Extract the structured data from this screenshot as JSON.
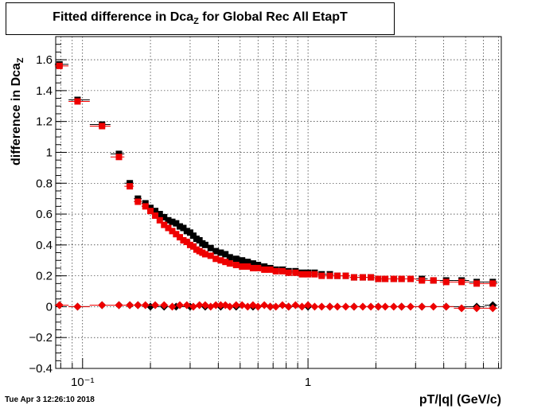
{
  "title": {
    "main": "Fitted difference in Dca",
    "sub": "Z",
    "rest": " for Global Rec All EtapT"
  },
  "timestamp": "Tue Apr  3 12:26:10 2018",
  "chart_data": {
    "type": "scatter",
    "xlabel": "pT/|q| (GeV/c)",
    "ylabel_main": "difference in Dca",
    "ylabel_sub": "Z",
    "x_scale": "log",
    "xlim": [
      0.076,
      7.2
    ],
    "ylim": [
      -0.4,
      1.75
    ],
    "grid": true,
    "y_ticks": [
      -0.4,
      -0.2,
      0,
      0.2,
      0.4,
      0.6,
      0.8,
      1,
      1.2,
      1.4,
      1.6
    ],
    "y_tick_labels": [
      "−0.4",
      "−0.2",
      "0",
      "0.2",
      "0.4",
      "0.6",
      "0.8",
      "1",
      "1.2",
      "1.4",
      "1.6"
    ],
    "x_tick_labels": [
      {
        "value": 0.1,
        "label": "10⁻¹"
      },
      {
        "value": 1,
        "label": "1"
      }
    ],
    "colors": {
      "black": "#000000",
      "red": "#ee0000"
    },
    "series": [
      {
        "marker": "square",
        "color": "black",
        "x": [
          0.079,
          0.095,
          0.122,
          0.145,
          0.162,
          0.176,
          0.19,
          0.2,
          0.21,
          0.22,
          0.23,
          0.24,
          0.25,
          0.26,
          0.27,
          0.28,
          0.29,
          0.3,
          0.31,
          0.32,
          0.33,
          0.34,
          0.35,
          0.37,
          0.39,
          0.41,
          0.43,
          0.45,
          0.48,
          0.51,
          0.54,
          0.57,
          0.6,
          0.64,
          0.68,
          0.72,
          0.77,
          0.82,
          0.88,
          0.94,
          1.0,
          1.07,
          1.15,
          1.25,
          1.35,
          1.47,
          1.6,
          1.75,
          1.9,
          2.05,
          2.2,
          2.4,
          2.6,
          2.85,
          3.2,
          3.6,
          4.1,
          4.8,
          5.6,
          6.6
        ],
        "y": [
          1.57,
          1.34,
          1.18,
          0.99,
          0.8,
          0.7,
          0.67,
          0.64,
          0.62,
          0.6,
          0.58,
          0.56,
          0.55,
          0.54,
          0.52,
          0.51,
          0.49,
          0.48,
          0.46,
          0.44,
          0.43,
          0.41,
          0.4,
          0.38,
          0.36,
          0.35,
          0.34,
          0.32,
          0.31,
          0.3,
          0.29,
          0.28,
          0.27,
          0.26,
          0.25,
          0.24,
          0.24,
          0.23,
          0.23,
          0.22,
          0.22,
          0.22,
          0.21,
          0.21,
          0.2,
          0.2,
          0.19,
          0.19,
          0.19,
          0.18,
          0.18,
          0.18,
          0.18,
          0.18,
          0.18,
          0.17,
          0.17,
          0.17,
          0.16,
          0.16
        ]
      },
      {
        "marker": "square",
        "color": "red",
        "x": [
          0.079,
          0.095,
          0.122,
          0.145,
          0.162,
          0.176,
          0.19,
          0.2,
          0.21,
          0.22,
          0.23,
          0.24,
          0.25,
          0.26,
          0.27,
          0.28,
          0.29,
          0.3,
          0.31,
          0.32,
          0.33,
          0.34,
          0.35,
          0.37,
          0.39,
          0.41,
          0.43,
          0.45,
          0.48,
          0.51,
          0.54,
          0.57,
          0.6,
          0.64,
          0.68,
          0.72,
          0.77,
          0.82,
          0.88,
          0.94,
          1.0,
          1.07,
          1.15,
          1.25,
          1.35,
          1.47,
          1.6,
          1.75,
          1.9,
          2.05,
          2.2,
          2.4,
          2.6,
          2.85,
          3.2,
          3.6,
          4.1,
          4.8,
          5.6,
          6.6
        ],
        "y": [
          1.56,
          1.33,
          1.17,
          0.97,
          0.78,
          0.68,
          0.65,
          0.62,
          0.59,
          0.56,
          0.53,
          0.51,
          0.49,
          0.47,
          0.45,
          0.43,
          0.42,
          0.4,
          0.39,
          0.37,
          0.36,
          0.35,
          0.34,
          0.33,
          0.31,
          0.3,
          0.29,
          0.28,
          0.27,
          0.26,
          0.26,
          0.25,
          0.25,
          0.24,
          0.24,
          0.23,
          0.23,
          0.22,
          0.22,
          0.21,
          0.21,
          0.21,
          0.2,
          0.2,
          0.2,
          0.2,
          0.19,
          0.19,
          0.19,
          0.18,
          0.18,
          0.18,
          0.18,
          0.18,
          0.17,
          0.17,
          0.16,
          0.16,
          0.15,
          0.15
        ]
      },
      {
        "marker": "diamond",
        "color": "black",
        "x": [
          0.079,
          0.095,
          0.122,
          0.145,
          0.162,
          0.176,
          0.2,
          0.23,
          0.26,
          0.3,
          0.35,
          0.41,
          0.48,
          0.57,
          0.68,
          0.82,
          1.0,
          1.25,
          1.6,
          2.05,
          2.6,
          3.2,
          4.1,
          5.6,
          6.6
        ],
        "y": [
          0.01,
          0.0,
          0.01,
          0.01,
          0.01,
          0.01,
          0.0,
          0.0,
          0.0,
          0.0,
          0.0,
          0.0,
          0.0,
          0.0,
          0.0,
          0.0,
          0.0,
          0.0,
          0.0,
          0.0,
          0.0,
          0.0,
          0.0,
          0.0,
          0.01
        ]
      },
      {
        "marker": "diamond",
        "color": "red",
        "x": [
          0.079,
          0.095,
          0.122,
          0.145,
          0.162,
          0.176,
          0.19,
          0.21,
          0.23,
          0.25,
          0.27,
          0.29,
          0.31,
          0.33,
          0.35,
          0.37,
          0.39,
          0.41,
          0.43,
          0.45,
          0.48,
          0.51,
          0.54,
          0.57,
          0.6,
          0.64,
          0.68,
          0.72,
          0.77,
          0.82,
          0.88,
          0.94,
          1.0,
          1.07,
          1.15,
          1.25,
          1.35,
          1.47,
          1.6,
          1.75,
          1.9,
          2.05,
          2.2,
          2.4,
          2.6,
          2.85,
          3.2,
          3.6,
          4.1,
          4.8,
          5.6,
          6.6
        ],
        "y": [
          0.01,
          0.0,
          0.01,
          0.01,
          0.01,
          0.01,
          0.01,
          0.01,
          0.01,
          0.0,
          0.01,
          0.01,
          0.0,
          0.01,
          0.01,
          0.0,
          0.01,
          0.01,
          0.01,
          0.0,
          0.01,
          0.01,
          0.0,
          0.01,
          0.0,
          0.01,
          0.0,
          0.0,
          0.01,
          0.0,
          0.01,
          0.0,
          0.01,
          0.0,
          0.0,
          0.0,
          0.0,
          0.0,
          0.0,
          0.0,
          0.0,
          0.0,
          0.0,
          0.0,
          0.0,
          0.0,
          0.0,
          0.0,
          0.0,
          -0.01,
          -0.01,
          -0.01
        ]
      }
    ]
  }
}
